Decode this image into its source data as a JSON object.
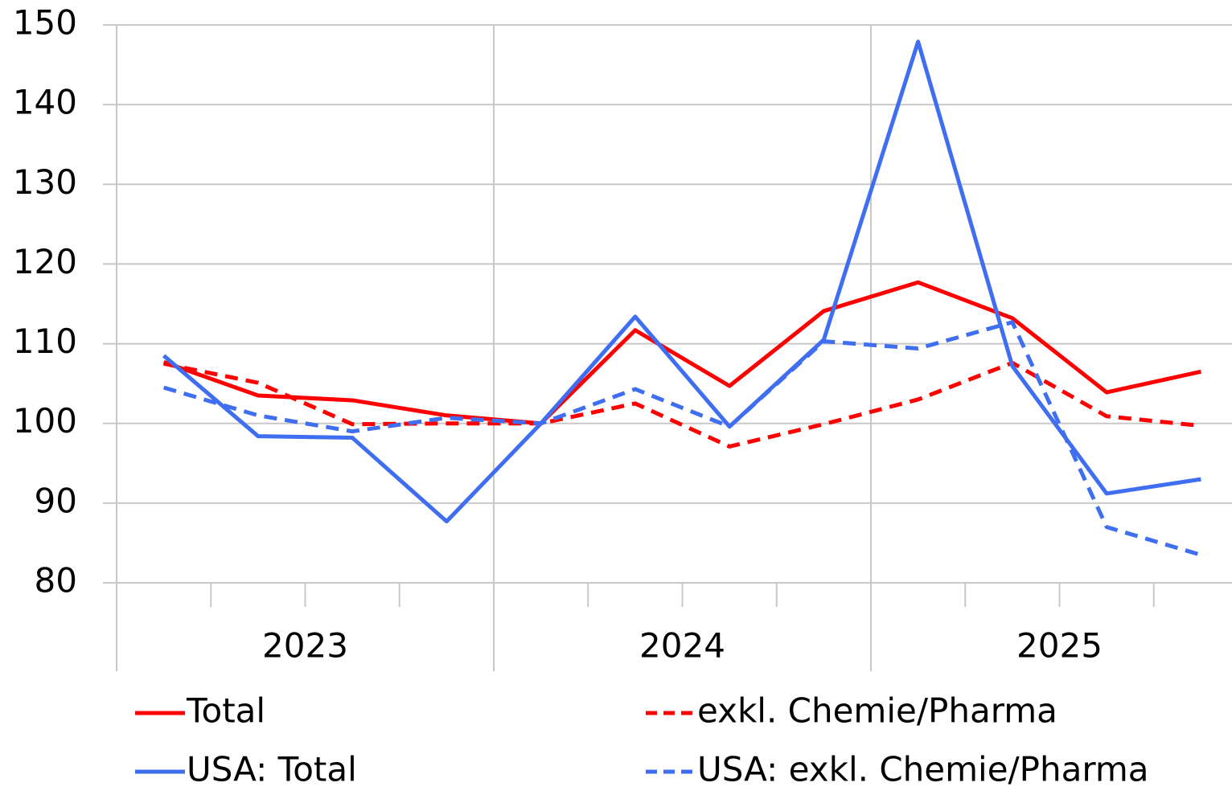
{
  "chart_data": {
    "type": "line",
    "categories": [
      null,
      null,
      null,
      null,
      null,
      null,
      null,
      null,
      null,
      null,
      null,
      null
    ],
    "groups": [
      "2023",
      "2024",
      "2025"
    ],
    "series": [
      {
        "name": "Total",
        "color": "#ff0000",
        "dashed": false,
        "values": [
          107.7,
          103.5,
          102.9,
          101.0,
          100.0,
          111.7,
          104.7,
          114.1,
          117.7,
          113.2,
          103.9,
          106.5
        ]
      },
      {
        "name": "exkl. Chemie/Pharma",
        "color": "#ff0000",
        "dashed": true,
        "values": [
          107.5,
          105.1,
          99.9,
          100.0,
          100.0,
          102.5,
          97.1,
          99.9,
          103.0,
          107.6,
          100.9,
          99.7
        ]
      },
      {
        "name": "USA: Total",
        "color": "#3f6ef0",
        "dashed": false,
        "values": [
          108.5,
          98.4,
          98.2,
          87.7,
          100.0,
          113.4,
          99.6,
          110.5,
          147.9,
          107.2,
          91.2,
          93.0
        ]
      },
      {
        "name": "USA: exkl. Chemie/Pharma",
        "color": "#3f6ef0",
        "dashed": true,
        "values": [
          104.5,
          101.0,
          99.0,
          100.7,
          100.0,
          104.3,
          99.6,
          110.3,
          109.4,
          112.7,
          87.0,
          83.5
        ]
      }
    ],
    "ylim": [
      80,
      150
    ],
    "yticks": [
      80,
      90,
      100,
      110,
      120,
      130,
      140,
      150
    ],
    "grid": true,
    "legend": "bottom"
  }
}
